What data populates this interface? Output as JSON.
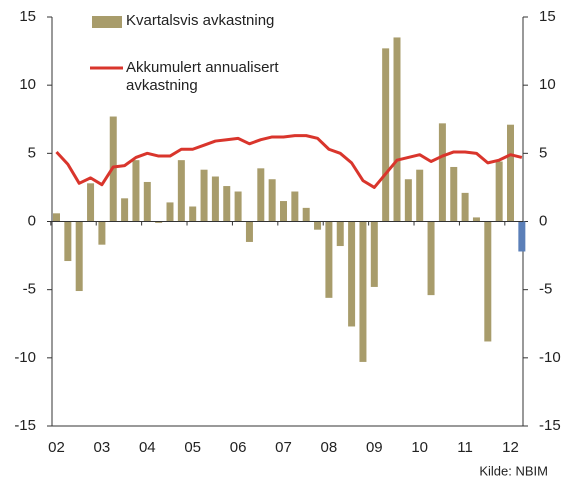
{
  "chart_data": {
    "type": "bar_line",
    "categories": [
      "02",
      null,
      null,
      null,
      "03",
      null,
      null,
      null,
      "04",
      null,
      null,
      null,
      "05",
      null,
      null,
      null,
      "06",
      null,
      null,
      null,
      "07",
      null,
      null,
      null,
      "08",
      null,
      null,
      null,
      "09",
      null,
      null,
      null,
      "10",
      null,
      null,
      null,
      "11",
      null,
      null,
      null,
      "12",
      null
    ],
    "series": [
      {
        "name": "Kvartalsvis avkastning",
        "type": "bar",
        "color": "#a89c6b",
        "colors": [
          "#a89c6b",
          "#a89c6b",
          "#a89c6b",
          "#a89c6b",
          "#a89c6b",
          "#a89c6b",
          "#a89c6b",
          "#a89c6b",
          "#a89c6b",
          "#a89c6b",
          "#a89c6b",
          "#a89c6b",
          "#a89c6b",
          "#a89c6b",
          "#a89c6b",
          "#a89c6b",
          "#a89c6b",
          "#a89c6b",
          "#a89c6b",
          "#a89c6b",
          "#a89c6b",
          "#a89c6b",
          "#a89c6b",
          "#a89c6b",
          "#a89c6b",
          "#a89c6b",
          "#a89c6b",
          "#a89c6b",
          "#a89c6b",
          "#a89c6b",
          "#a89c6b",
          "#a89c6b",
          "#a89c6b",
          "#a89c6b",
          "#a89c6b",
          "#a89c6b",
          "#a89c6b",
          "#a89c6b",
          "#a89c6b",
          "#a89c6b",
          "#a89c6b",
          "#5b7fb8"
        ],
        "values": [
          0.6,
          -2.9,
          -5.1,
          2.8,
          -1.7,
          7.7,
          1.7,
          4.5,
          2.9,
          -0.1,
          1.4,
          4.5,
          1.1,
          3.8,
          3.3,
          2.6,
          2.2,
          -1.5,
          3.9,
          3.1,
          1.5,
          2.2,
          1.0,
          -0.6,
          -5.6,
          -1.8,
          -7.7,
          -10.3,
          -4.8,
          12.7,
          13.5,
          3.1,
          3.8,
          -5.4,
          7.2,
          4.0,
          2.1,
          0.3,
          -8.8,
          4.4,
          7.1,
          -2.2
        ]
      },
      {
        "name": "Akkumulert annualisert avkastning",
        "type": "line",
        "color": "#d9352c",
        "values": [
          5.1,
          4.2,
          2.8,
          3.2,
          2.7,
          4.0,
          4.1,
          4.7,
          5.0,
          4.8,
          4.8,
          5.3,
          5.3,
          5.6,
          5.9,
          6.0,
          6.1,
          5.7,
          6.0,
          6.2,
          6.2,
          6.3,
          6.3,
          6.1,
          5.3,
          5.0,
          4.3,
          3.0,
          2.5,
          3.5,
          4.5,
          4.7,
          4.9,
          4.4,
          4.8,
          5.1,
          5.1,
          5.0,
          4.3,
          4.5,
          4.9,
          4.7
        ]
      }
    ],
    "ylim": [
      -15,
      15
    ],
    "yticks": [
      -15,
      -10,
      -5,
      0,
      5,
      10,
      15
    ],
    "y2lim": [
      -15,
      15
    ],
    "y2ticks": [
      -15,
      -10,
      -5,
      0,
      5,
      10,
      15
    ],
    "source": "Kilde: NBIM"
  }
}
